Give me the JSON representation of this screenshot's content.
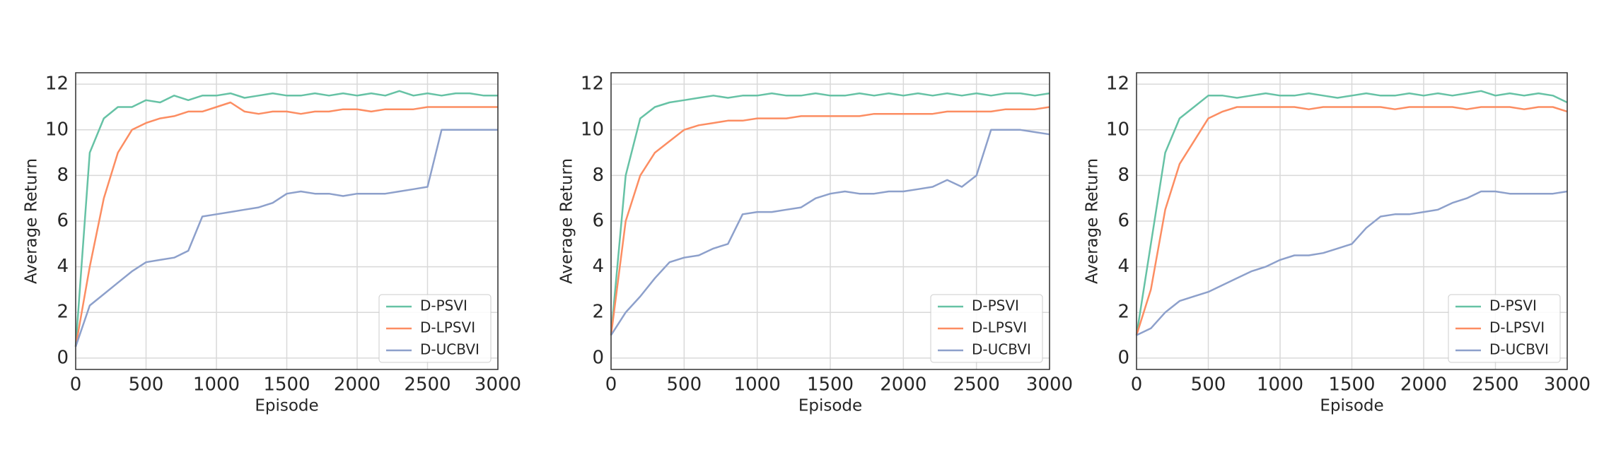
{
  "chart_data": [
    {
      "type": "line",
      "xlabel": "Episode",
      "ylabel": "Average Return",
      "grid": true,
      "legend": "lower right",
      "x": [
        0,
        100,
        200,
        300,
        400,
        500,
        600,
        700,
        800,
        900,
        1000,
        1100,
        1200,
        1300,
        1400,
        1500,
        1600,
        1700,
        1800,
        1900,
        2000,
        2100,
        2200,
        2300,
        2400,
        2500,
        2600,
        2700,
        2800,
        2900,
        3000
      ],
      "xlim": [
        0,
        3000
      ],
      "xticks": [
        0,
        500,
        1000,
        1500,
        2000,
        2500,
        3000
      ],
      "ylim": [
        -0.5,
        12.5
      ],
      "yticks": [
        0,
        2,
        4,
        6,
        8,
        10,
        12
      ],
      "series": [
        {
          "name": "D-PSVI",
          "color": "#66c2a5",
          "values": [
            0.5,
            9,
            10.5,
            11,
            11,
            11.3,
            11.2,
            11.5,
            11.3,
            11.5,
            11.5,
            11.6,
            11.4,
            11.5,
            11.6,
            11.5,
            11.5,
            11.6,
            11.5,
            11.6,
            11.5,
            11.6,
            11.5,
            11.7,
            11.5,
            11.6,
            11.5,
            11.6,
            11.6,
            11.5,
            11.5
          ]
        },
        {
          "name": "D-LPSVI",
          "color": "#fc8d62",
          "values": [
            0.5,
            4,
            7,
            9,
            10,
            10.3,
            10.5,
            10.6,
            10.8,
            10.8,
            11,
            11.2,
            10.8,
            10.7,
            10.8,
            10.8,
            10.7,
            10.8,
            10.8,
            10.9,
            10.9,
            10.8,
            10.9,
            10.9,
            10.9,
            11,
            11,
            11,
            11,
            11,
            11
          ]
        },
        {
          "name": "D-UCBVI",
          "color": "#8da0cb",
          "values": [
            0.5,
            2.3,
            2.8,
            3.3,
            3.8,
            4.2,
            4.3,
            4.4,
            4.7,
            6.2,
            6.3,
            6.4,
            6.5,
            6.6,
            6.8,
            7.2,
            7.3,
            7.2,
            7.2,
            7.1,
            7.2,
            7.2,
            7.2,
            7.3,
            7.4,
            7.5,
            10,
            10,
            10,
            10,
            10
          ]
        }
      ]
    },
    {
      "type": "line",
      "xlabel": "Episode",
      "ylabel": "Average Return",
      "grid": true,
      "legend": "lower right",
      "x": [
        0,
        100,
        200,
        300,
        400,
        500,
        600,
        700,
        800,
        900,
        1000,
        1100,
        1200,
        1300,
        1400,
        1500,
        1600,
        1700,
        1800,
        1900,
        2000,
        2100,
        2200,
        2300,
        2400,
        2500,
        2600,
        2700,
        2800,
        2900,
        3000
      ],
      "xlim": [
        0,
        3000
      ],
      "xticks": [
        0,
        500,
        1000,
        1500,
        2000,
        2500,
        3000
      ],
      "ylim": [
        -0.5,
        12.5
      ],
      "yticks": [
        0,
        2,
        4,
        6,
        8,
        10,
        12
      ],
      "series": [
        {
          "name": "D-PSVI",
          "color": "#66c2a5",
          "values": [
            1,
            8,
            10.5,
            11,
            11.2,
            11.3,
            11.4,
            11.5,
            11.4,
            11.5,
            11.5,
            11.6,
            11.5,
            11.5,
            11.6,
            11.5,
            11.5,
            11.6,
            11.5,
            11.6,
            11.5,
            11.6,
            11.5,
            11.6,
            11.5,
            11.6,
            11.5,
            11.6,
            11.6,
            11.5,
            11.6
          ]
        },
        {
          "name": "D-LPSVI",
          "color": "#fc8d62",
          "values": [
            1,
            6,
            8,
            9,
            9.5,
            10,
            10.2,
            10.3,
            10.4,
            10.4,
            10.5,
            10.5,
            10.5,
            10.6,
            10.6,
            10.6,
            10.6,
            10.6,
            10.7,
            10.7,
            10.7,
            10.7,
            10.7,
            10.8,
            10.8,
            10.8,
            10.8,
            10.9,
            10.9,
            10.9,
            11
          ]
        },
        {
          "name": "D-UCBVI",
          "color": "#8da0cb",
          "values": [
            1,
            2,
            2.7,
            3.5,
            4.2,
            4.4,
            4.5,
            4.8,
            5,
            6.3,
            6.4,
            6.4,
            6.5,
            6.6,
            7,
            7.2,
            7.3,
            7.2,
            7.2,
            7.3,
            7.3,
            7.4,
            7.5,
            7.8,
            7.5,
            8,
            10,
            10,
            10,
            9.9,
            9.8
          ]
        }
      ]
    },
    {
      "type": "line",
      "xlabel": "Episode",
      "ylabel": "Average Return",
      "grid": true,
      "legend": "lower right",
      "x": [
        0,
        100,
        200,
        300,
        400,
        500,
        600,
        700,
        800,
        900,
        1000,
        1100,
        1200,
        1300,
        1400,
        1500,
        1600,
        1700,
        1800,
        1900,
        2000,
        2100,
        2200,
        2300,
        2400,
        2500,
        2600,
        2700,
        2800,
        2900,
        3000
      ],
      "xlim": [
        0,
        3000
      ],
      "xticks": [
        0,
        500,
        1000,
        1500,
        2000,
        2500,
        3000
      ],
      "ylim": [
        -0.5,
        12.5
      ],
      "yticks": [
        0,
        2,
        4,
        6,
        8,
        10,
        12
      ],
      "series": [
        {
          "name": "D-PSVI",
          "color": "#66c2a5",
          "values": [
            1,
            5,
            9,
            10.5,
            11,
            11.5,
            11.5,
            11.4,
            11.5,
            11.6,
            11.5,
            11.5,
            11.6,
            11.5,
            11.4,
            11.5,
            11.6,
            11.5,
            11.5,
            11.6,
            11.5,
            11.6,
            11.5,
            11.6,
            11.7,
            11.5,
            11.6,
            11.5,
            11.6,
            11.5,
            11.2
          ]
        },
        {
          "name": "D-LPSVI",
          "color": "#fc8d62",
          "values": [
            1,
            3,
            6.5,
            8.5,
            9.5,
            10.5,
            10.8,
            11,
            11,
            11,
            11,
            11,
            10.9,
            11,
            11,
            11,
            11,
            11,
            10.9,
            11,
            11,
            11,
            11,
            10.9,
            11,
            11,
            11,
            10.9,
            11,
            11,
            10.8
          ]
        },
        {
          "name": "D-UCBVI",
          "color": "#8da0cb",
          "values": [
            1,
            1.3,
            2,
            2.5,
            2.7,
            2.9,
            3.2,
            3.5,
            3.8,
            4,
            4.3,
            4.5,
            4.5,
            4.6,
            4.8,
            5,
            5.7,
            6.2,
            6.3,
            6.3,
            6.4,
            6.5,
            6.8,
            7,
            7.3,
            7.3,
            7.2,
            7.2,
            7.2,
            7.2,
            7.3
          ]
        }
      ]
    }
  ]
}
